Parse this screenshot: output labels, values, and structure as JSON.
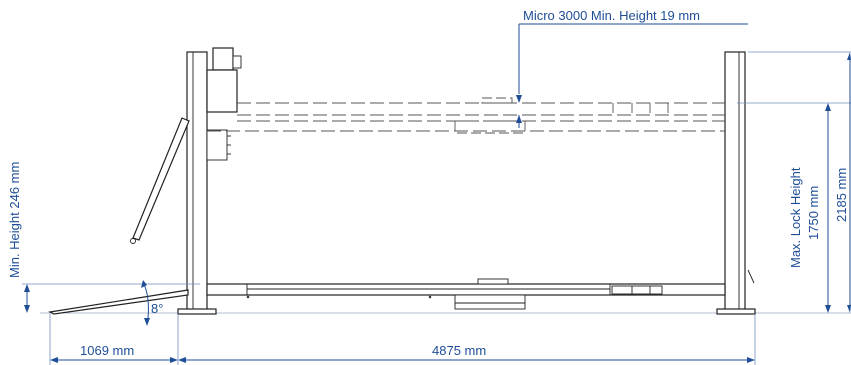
{
  "labels": {
    "micro_height": "Micro 3000  Min. Height  19 mm",
    "min_height": "Min. Height  246 mm",
    "max_lock_height_line1": "Max. Lock Height",
    "max_lock_height_line2": "1750 mm",
    "overall_height": "2185 mm",
    "ramp_angle": "8°",
    "ramp_length": "1069 mm",
    "lift_length": "4875 mm"
  },
  "colors": {
    "dimension": "#1f4e96",
    "structure": "#222222",
    "phantom": "#555555"
  }
}
